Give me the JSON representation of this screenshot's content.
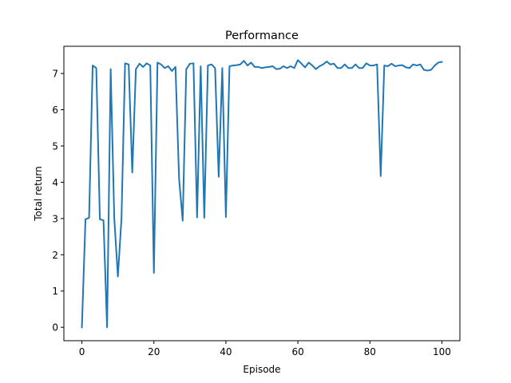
{
  "chart_data": {
    "type": "line",
    "title": "Performance",
    "xlabel": "Episode",
    "ylabel": "Total return",
    "xlim": [
      -5,
      105
    ],
    "ylim": [
      -0.37,
      7.75
    ],
    "xticks": [
      0,
      20,
      40,
      60,
      80,
      100
    ],
    "yticks": [
      0,
      1,
      2,
      3,
      4,
      5,
      6,
      7
    ],
    "grid": false,
    "line_color": "#1f77b4",
    "series": [
      {
        "x": [
          0,
          1,
          2,
          3,
          4,
          5,
          6,
          7,
          8,
          9,
          10,
          11,
          12,
          13,
          14,
          15,
          16,
          17,
          18,
          19,
          20,
          21,
          22,
          23,
          24,
          25,
          26,
          27,
          28,
          29,
          30,
          31,
          32,
          33,
          34,
          35,
          36,
          37,
          38,
          39,
          40,
          41,
          42,
          43,
          44,
          45,
          46,
          47,
          48,
          49,
          50,
          51,
          52,
          53,
          54,
          55,
          56,
          57,
          58,
          59,
          60,
          61,
          62,
          63,
          64,
          65,
          66,
          67,
          68,
          69,
          70,
          71,
          72,
          73,
          74,
          75,
          76,
          77,
          78,
          79,
          80,
          81,
          82,
          83,
          84,
          85,
          86,
          87,
          88,
          89,
          90,
          91,
          92,
          93,
          94,
          95,
          96,
          97,
          98,
          99,
          100
        ],
        "values": [
          0.0,
          2.98,
          3.02,
          7.22,
          7.15,
          2.98,
          2.95,
          0.0,
          7.12,
          3.0,
          1.4,
          3.0,
          7.28,
          7.25,
          4.27,
          7.12,
          7.27,
          7.18,
          7.28,
          7.22,
          1.5,
          7.3,
          7.25,
          7.15,
          7.2,
          7.07,
          7.18,
          4.1,
          2.94,
          7.12,
          7.27,
          7.28,
          3.03,
          7.2,
          3.02,
          7.22,
          7.25,
          7.15,
          4.15,
          7.15,
          3.04,
          7.2,
          7.22,
          7.23,
          7.25,
          7.35,
          7.22,
          7.3,
          7.18,
          7.18,
          7.15,
          7.17,
          7.18,
          7.2,
          7.12,
          7.13,
          7.2,
          7.15,
          7.2,
          7.15,
          7.37,
          7.27,
          7.17,
          7.3,
          7.22,
          7.12,
          7.2,
          7.25,
          7.33,
          7.25,
          7.27,
          7.15,
          7.15,
          7.25,
          7.15,
          7.15,
          7.25,
          7.15,
          7.15,
          7.28,
          7.22,
          7.22,
          7.25,
          4.17,
          7.22,
          7.2,
          7.27,
          7.2,
          7.22,
          7.23,
          7.17,
          7.15,
          7.25,
          7.22,
          7.25,
          7.1,
          7.08,
          7.1,
          7.22,
          7.3,
          7.32
        ]
      }
    ]
  }
}
